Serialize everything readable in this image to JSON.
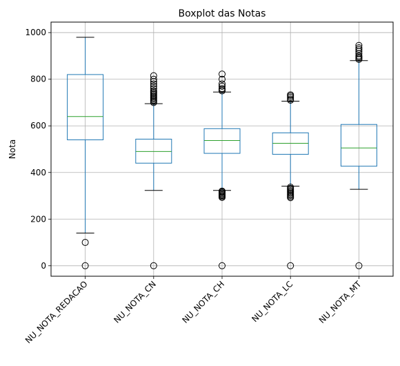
{
  "chart_data": {
    "type": "box",
    "title": "Boxplot das Notas",
    "xlabel": "",
    "ylabel": "Nota",
    "ylim": [
      -45,
      1045
    ],
    "yticks": [
      0,
      200,
      400,
      600,
      800,
      1000
    ],
    "grid": true,
    "colors": {
      "box": "#1f77b4",
      "median": "#2ca02c",
      "whisker": "#1f77b4",
      "cap": "#000000",
      "flier": "#000000",
      "grid": "#b0b0b0"
    },
    "categories": [
      "NU_NOTA_REDACAO",
      "NU_NOTA_CN",
      "NU_NOTA_CH",
      "NU_NOTA_LC",
      "NU_NOTA_MT"
    ],
    "boxes": [
      {
        "q1": 540,
        "median": 640,
        "q3": 820,
        "whisker_low": 140,
        "whisker_high": 980,
        "fliers": [
          100,
          0
        ]
      },
      {
        "q1": 440,
        "median": 490,
        "q3": 543,
        "whisker_low": 323,
        "whisker_high": 695,
        "fliers": [
          0,
          700,
          705,
          710,
          715,
          720,
          725,
          730,
          735,
          740,
          745,
          750,
          760,
          770,
          780,
          790,
          800,
          815
        ]
      },
      {
        "q1": 482,
        "median": 537,
        "q3": 588,
        "whisker_low": 323,
        "whisker_high": 745,
        "fliers": [
          0,
          293,
          297,
          301,
          305,
          309,
          313,
          317,
          320,
          750,
          755,
          760,
          770,
          780,
          800,
          822
        ]
      },
      {
        "q1": 478,
        "median": 525,
        "q3": 570,
        "whisker_low": 341,
        "whisker_high": 706,
        "fliers": [
          0,
          292,
          297,
          302,
          307,
          312,
          317,
          322,
          327,
          332,
          337,
          710,
          715,
          722,
          728,
          733
        ]
      },
      {
        "q1": 427,
        "median": 505,
        "q3": 606,
        "whisker_low": 328,
        "whisker_high": 880,
        "fliers": [
          0,
          885,
          890,
          895,
          900,
          910,
          920,
          928,
          935,
          945
        ]
      }
    ]
  }
}
